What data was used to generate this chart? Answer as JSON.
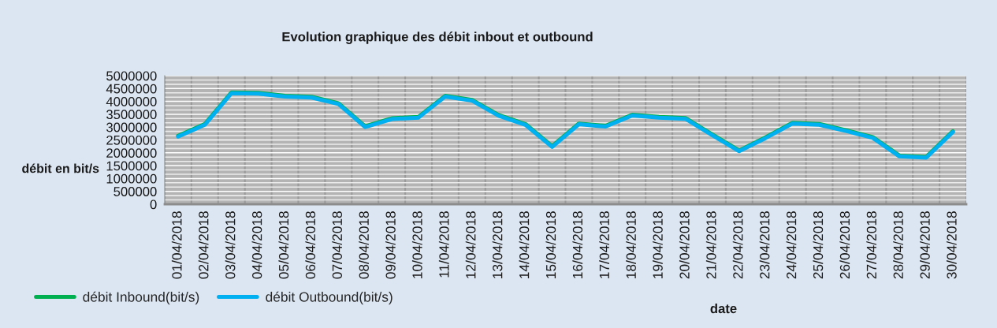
{
  "chart_data": {
    "type": "line",
    "title": "Evolution graphique des débit inbout et outbound",
    "xlabel": "date",
    "ylabel": "débit en bit/s",
    "categories": [
      "01/04/2018",
      "02/04/2018",
      "03/04/2018",
      "04/04/2018",
      "05/04/2018",
      "06/04/2018",
      "07/04/2018",
      "08/04/2018",
      "09/04/2018",
      "10/04/2018",
      "11/04/2018",
      "12/04/2018",
      "13/04/2018",
      "14/04/2018",
      "15/04/2018",
      "16/04/2018",
      "17/04/2018",
      "18/04/2018",
      "19/04/2018",
      "20/04/2018",
      "21/04/2018",
      "22/04/2018",
      "23/04/2018",
      "24/04/2018",
      "25/04/2018",
      "26/04/2018",
      "27/04/2018",
      "28/04/2018",
      "29/04/2018",
      "30/04/2018"
    ],
    "series": [
      {
        "name": "débit Inbound(bit/s)",
        "color": "#00b050",
        "values": [
          2660000,
          3120000,
          4350000,
          4330000,
          4220000,
          4180000,
          3930000,
          3030000,
          3340000,
          3400000,
          4220000,
          4060000,
          3470000,
          3120000,
          2260000,
          3140000,
          3050000,
          3480000,
          3400000,
          3350000,
          2710000,
          2090000,
          2610000,
          3170000,
          3120000,
          2880000,
          2610000,
          1890000,
          1840000,
          2840000
        ]
      },
      {
        "name": "débit Outbound(bit/s)",
        "color": "#00b0f0",
        "values": [
          2630000,
          3090000,
          4320000,
          4300000,
          4190000,
          4150000,
          3900000,
          3000000,
          3310000,
          3370000,
          4190000,
          4030000,
          3440000,
          3090000,
          2230000,
          3110000,
          3020000,
          3450000,
          3370000,
          3320000,
          2680000,
          2060000,
          2580000,
          3140000,
          3090000,
          2850000,
          2580000,
          1860000,
          1810000,
          2810000
        ]
      }
    ],
    "ylim": [
      0,
      5000000
    ],
    "yticks": [
      0,
      500000,
      1000000,
      1500000,
      2000000,
      2500000,
      3000000,
      3500000,
      4000000,
      4500000,
      5000000
    ],
    "grid": true,
    "legend": "bottom left",
    "line_style": "solid"
  }
}
